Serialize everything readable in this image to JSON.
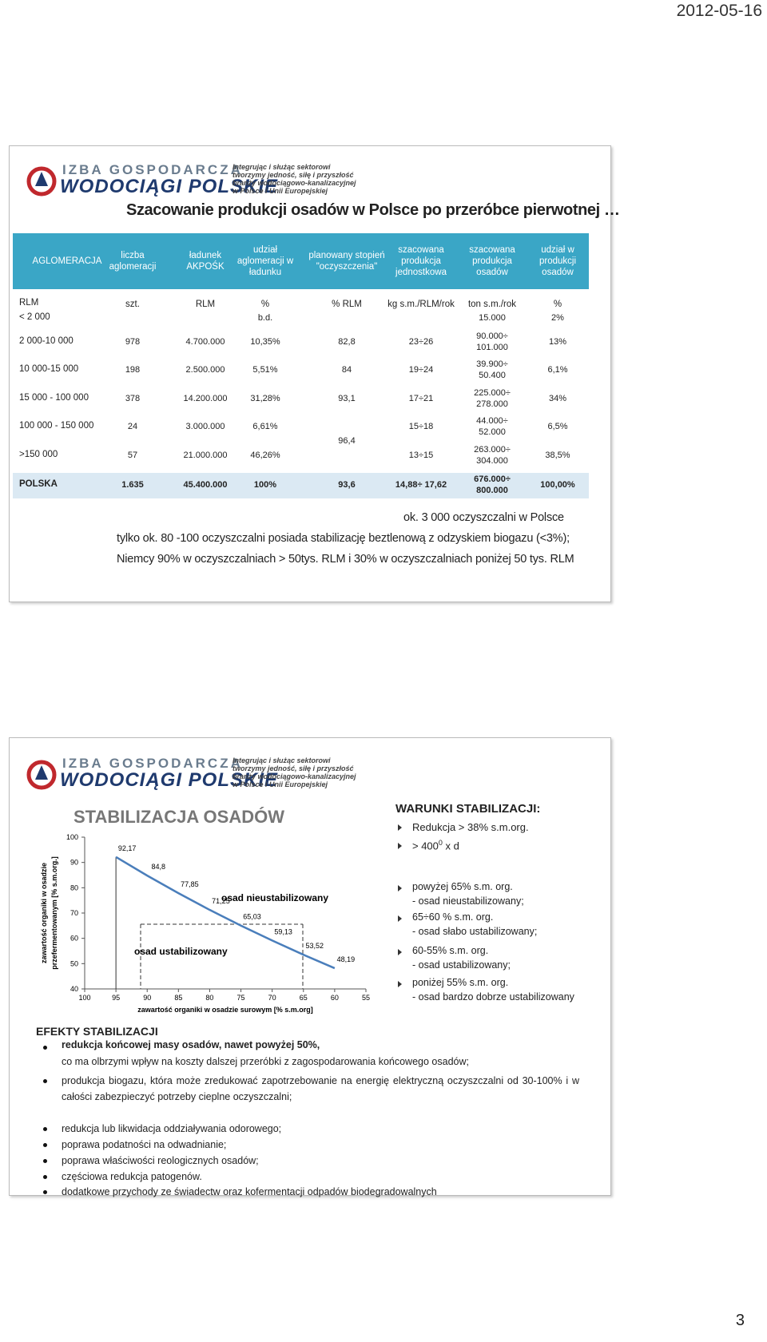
{
  "date": "2012-05-16",
  "page_number": "3",
  "logo": {
    "line1": "IZBA GOSPODARCZA",
    "line2": "WODOCIĄGI POLSKIE",
    "tagline": [
      "Integrując i służąc sektorowi",
      "tworzymy jedność, siłę i przyszłość",
      "branży wodociągowo-kanalizacyjnej",
      "w Polsce i Unii Europejskiej"
    ]
  },
  "slide1": {
    "title": "Szacowanie produkcji osadów w Polsce po przeróbce pierwotnej …",
    "table": {
      "header": [
        "AGLOMERACJA",
        "liczba aglomeracji",
        "ładunek AKPOŚK",
        "udział aglomeracji w ładunku",
        "planowany stopień \"oczyszczenia\"",
        "szacowana produkcja jednostkowa",
        "szacowana produkcja osadów",
        "udział w produkcji osadów"
      ],
      "units": [
        "RLM",
        "szt.",
        "RLM",
        "%",
        "% RLM",
        "kg s.m./RLM/rok",
        "ton s.m./rok",
        "%"
      ],
      "rows": [
        [
          "< 2 000",
          null,
          null,
          "b.d.",
          null,
          null,
          "15.000",
          "2%"
        ],
        [
          "2 000-10 000",
          "978",
          "4.700.000",
          "10,35%",
          "82,8",
          "23÷26",
          "90.000÷ 101.000",
          "13%"
        ],
        [
          "10 000-15 000",
          "198",
          "2.500.000",
          "5,51%",
          "84",
          "19÷24",
          "39.900÷ 50.400",
          "6,1%"
        ],
        [
          "15 000 - 100 000",
          "378",
          "14.200.000",
          "31,28%",
          "93,1",
          "17÷21",
          "225.000÷ 278.000",
          "34%"
        ],
        [
          "100 000 - 150 000",
          "24",
          "3.000.000",
          "6,61%",
          "96,4",
          "15÷18",
          "44.000÷ 52.000",
          "6,5%"
        ],
        [
          ">150 000",
          "57",
          "21.000.000",
          "46,26%",
          null,
          "13÷15",
          "263.000÷ 304.000",
          "38,5%"
        ],
        [
          "POLSKA",
          "1.635",
          "45.400.000",
          "100%",
          "93,6",
          "14,88÷ 17,62",
          "676.000÷ 800.000",
          "100,00%"
        ]
      ]
    },
    "notes": [
      "ok. 3 000 oczyszczalni w Polsce",
      "tylko ok. 80 -100 oczyszczalni posiada stabilizację beztlenową z odzyskiem biogazu (<3%);",
      "Niemcy 90% w oczyszczalniach > 50tys. RLM i 30% w oczyszczalniach poniżej 50 tys. RLM"
    ]
  },
  "chart_data": {
    "type": "line",
    "title": "STABILIZACJA OSADÓW",
    "y_label": [
      "zawartość organiki w osadzie",
      "przefermentowanym [% s.m.org.]"
    ],
    "x_label": "zawartość organiki w osadzie surowym [% s.m.org]",
    "annotations": [
      "osad nieustabilizowany",
      "osad ustabilizowany"
    ],
    "x": [
      95,
      90,
      85,
      80,
      75,
      70,
      65,
      60
    ],
    "values": [
      92.17,
      84.8,
      77.85,
      71.25,
      65.03,
      59.13,
      53.52,
      48.19
    ],
    "value_labels": [
      "92,17",
      "84,8",
      "77,85",
      "71,25",
      "65,03",
      "59,13",
      "53,52",
      "48,19"
    ],
    "color": "#4a7ebb",
    "xlim": [
      100,
      55
    ],
    "xticks": [
      100,
      95,
      90,
      85,
      80,
      75,
      70,
      65,
      60,
      55
    ],
    "ylim": [
      40,
      100
    ],
    "yticks": [
      40,
      50,
      60,
      70,
      80,
      90,
      100
    ]
  },
  "conditions": {
    "title": "WARUNKI STABILIZACJI:",
    "items": [
      "Redukcja > 38% s.m.org."
    ],
    "degree_item": {
      "text": "> 400",
      "sup": "0",
      "rest": " x d"
    },
    "levels": [
      [
        "powyżej 65% s.m. org.",
        "- osad nieustabilizowany;"
      ],
      [
        "65÷60 % s.m. org.",
        "- osad słabo ustabilizowany;"
      ],
      [
        "60-55% s.m. org.",
        "- osad ustabilizowany;"
      ],
      [
        "poniżej 55% s.m. org.",
        "- osad bardzo dobrze ustabilizowany"
      ]
    ]
  },
  "effects": {
    "title": "EFEKTY STABILIZACJI",
    "first": "redukcja końcowej masy osadów, nawet powyżej 50%,",
    "first_sub": "co ma olbrzymi wpływ na koszty dalszej przeróbki z zagospodarowania końcowego osadów;",
    "items": [
      "produkcja biogazu, która może zredukować zapotrzebowanie na energię elektryczną oczyszczalni od 30-100% i w całości zabezpieczyć potrzeby cieplne oczyszczalni;",
      "redukcja lub likwidacja oddziaływania odorowego;",
      "poprawa podatności na odwadnianie;",
      "poprawa właściwości reologicznych osadów;",
      "częściowa redukcja patogenów.",
      "dodatkowe przychody ze świadectw oraz kofermentacji odpadów biodegradowalnych"
    ]
  }
}
